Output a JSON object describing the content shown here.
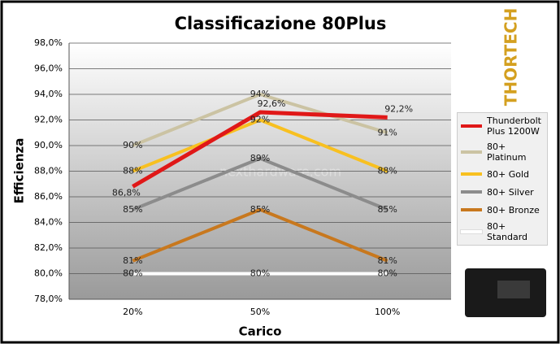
{
  "chart_data": {
    "type": "line",
    "title": "Classificazione 80Plus",
    "x_label": "Carico",
    "y_label": "Efficienza",
    "watermark": "nexthardware.com",
    "logo": "THORTECH",
    "categories": [
      "20%",
      "50%",
      "100%"
    ],
    "ylim": [
      78,
      98
    ],
    "yticks": [
      {
        "value": 78,
        "label": "78,0%"
      },
      {
        "value": 80,
        "label": "80,0%"
      },
      {
        "value": 82,
        "label": "82,0%"
      },
      {
        "value": 84,
        "label": "84,0%"
      },
      {
        "value": 86,
        "label": "86,0%"
      },
      {
        "value": 88,
        "label": "88,0%"
      },
      {
        "value": 90,
        "label": "90,0%"
      },
      {
        "value": 92,
        "label": "92,0%"
      },
      {
        "value": 94,
        "label": "94,0%"
      },
      {
        "value": 96,
        "label": "96,0%"
      },
      {
        "value": 98,
        "label": "98,0%"
      }
    ],
    "grid": true,
    "legend": "right",
    "series": [
      {
        "name": "Thunderbolt Plus 1200W",
        "color": "#e01818",
        "values": [
          86.8,
          92.6,
          92.2
        ],
        "value_labels": [
          "86,8%",
          "92,6%",
          "92,2%"
        ]
      },
      {
        "name": "80+ Platinum",
        "color": "#cbc3a3",
        "values": [
          90,
          94,
          91
        ],
        "value_labels": [
          "90%",
          "94%",
          "91%"
        ]
      },
      {
        "name": "80+ Gold",
        "color": "#f8c020",
        "values": [
          88,
          92,
          88
        ],
        "value_labels": [
          "88%",
          "92%",
          "88%"
        ]
      },
      {
        "name": "80+ Silver",
        "color": "#8c8c8c",
        "values": [
          85,
          89,
          85
        ],
        "value_labels": [
          "85%",
          "89%",
          "85%"
        ]
      },
      {
        "name": "80+ Bronze",
        "color": "#c8781e",
        "values": [
          81,
          85,
          81
        ],
        "value_labels": [
          "81%",
          "85%",
          "81%"
        ]
      },
      {
        "name": "80+ Standard",
        "color": "#ffffff",
        "values": [
          80,
          80,
          80
        ],
        "value_labels": [
          "80%",
          "80%",
          "80%"
        ]
      }
    ]
  }
}
